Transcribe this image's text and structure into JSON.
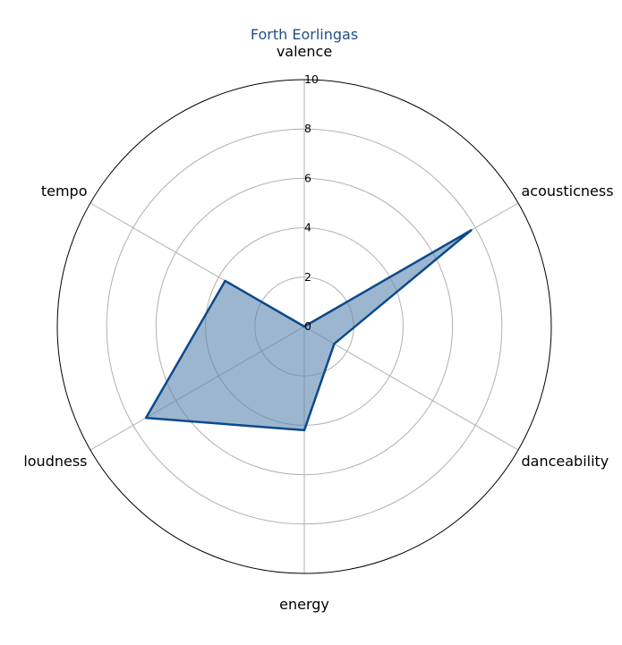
{
  "chart_data": {
    "type": "radar",
    "title": "Forth Eorlingas",
    "categories": [
      "valence",
      "acousticness",
      "danceability",
      "energy",
      "loudness",
      "tempo"
    ],
    "series": [
      {
        "values": [
          0.0,
          7.8,
          1.4,
          4.2,
          7.4,
          3.7
        ]
      }
    ],
    "rlim": [
      0,
      10
    ],
    "r_ticks": [
      "0",
      "2",
      "4",
      "6",
      "8",
      "10"
    ],
    "grid": true,
    "colors": {
      "title": "#1f4e8c",
      "line": "#0b4a8a",
      "fill": "#5b86b0",
      "grid": "#b0b0b0",
      "frame": "#000000"
    }
  }
}
